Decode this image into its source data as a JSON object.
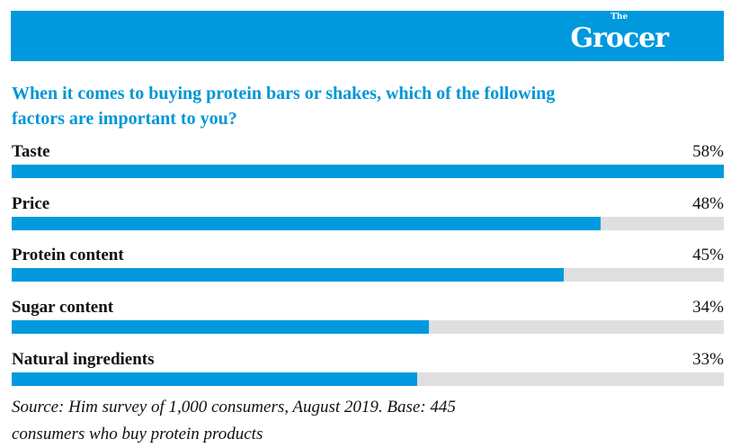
{
  "brand": {
    "logo_small": "The",
    "logo": "Grocer",
    "color": "#0099dd"
  },
  "chart_data": {
    "type": "bar",
    "orientation": "horizontal",
    "title": "When it comes to buying protein bars or shakes, which of the following factors are important to you?",
    "categories": [
      "Taste",
      "Price",
      "Protein content",
      "Sugar content",
      "Natural ingredients"
    ],
    "values": [
      58,
      48,
      45,
      34,
      33
    ],
    "value_labels": [
      "58%",
      "48%",
      "45%",
      "34%",
      "33%"
    ],
    "xlim": [
      0,
      58
    ],
    "unit": "%",
    "source": "Source: Him survey of 1,000 consumers, August 2019. Base: 445 consumers who buy protein products"
  }
}
